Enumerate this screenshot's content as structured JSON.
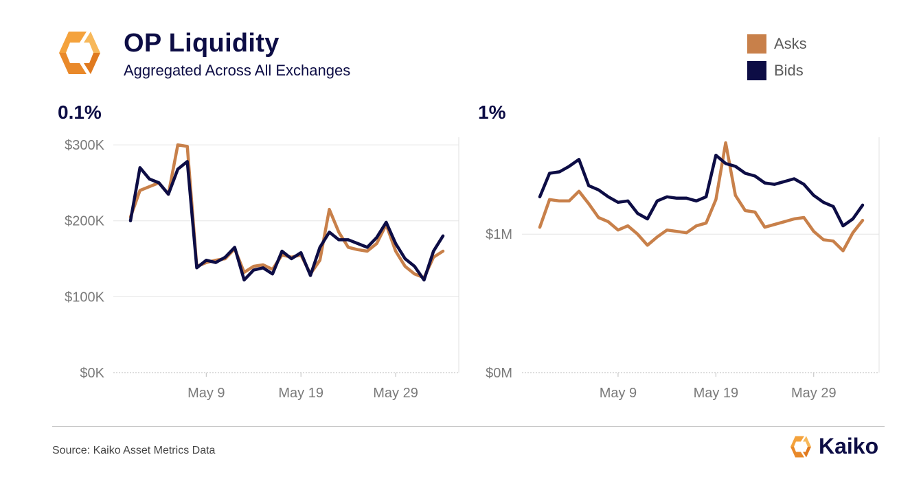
{
  "header": {
    "title": "OP Liquidity",
    "subtitle": "Aggregated Across All Exchanges"
  },
  "legend": [
    {
      "label": "Asks",
      "color": "#c8804a"
    },
    {
      "label": "Bids",
      "color": "#0d0d45"
    }
  ],
  "footer": {
    "source": "Source: Kaiko Asset Metrics Data",
    "brand": "Kaiko"
  },
  "chart_data": [
    {
      "type": "line",
      "title": "0.1%",
      "x_tick_labels": [
        "May 9",
        "May 19",
        "May 29"
      ],
      "y_tick_labels": [
        "$300K",
        "$200K",
        "$100K",
        "$0K"
      ],
      "x": [
        "May 1",
        "May 2",
        "May 3",
        "May 4",
        "May 5",
        "May 6",
        "May 7",
        "May 8",
        "May 9",
        "May 10",
        "May 11",
        "May 12",
        "May 13",
        "May 14",
        "May 15",
        "May 16",
        "May 17",
        "May 18",
        "May 19",
        "May 20",
        "May 21",
        "May 22",
        "May 23",
        "May 24",
        "May 25",
        "May 26",
        "May 27",
        "May 28",
        "May 29",
        "May 30",
        "May 31",
        "Jun 1",
        "Jun 2",
        "Jun 3"
      ],
      "ylim": [
        0,
        310000
      ],
      "grid": true,
      "series": [
        {
          "name": "Asks",
          "values": [
            205000,
            240000,
            245000,
            250000,
            235000,
            300000,
            298000,
            140000,
            145000,
            148000,
            150000,
            163000,
            132000,
            140000,
            142000,
            136000,
            155000,
            152000,
            155000,
            130000,
            148000,
            215000,
            185000,
            165000,
            162000,
            160000,
            170000,
            195000,
            160000,
            140000,
            130000,
            125000,
            152000,
            160000
          ]
        },
        {
          "name": "Bids",
          "values": [
            200000,
            270000,
            255000,
            250000,
            235000,
            268000,
            278000,
            138000,
            148000,
            145000,
            152000,
            165000,
            122000,
            135000,
            138000,
            130000,
            160000,
            150000,
            158000,
            128000,
            165000,
            185000,
            175000,
            175000,
            170000,
            165000,
            178000,
            198000,
            170000,
            150000,
            140000,
            122000,
            160000,
            180000
          ]
        }
      ]
    },
    {
      "type": "line",
      "title": "1%",
      "x_tick_labels": [
        "May 9",
        "May 19",
        "May 29"
      ],
      "y_tick_labels": [
        "$1M",
        "$0M"
      ],
      "x": [
        "May 1",
        "May 2",
        "May 3",
        "May 4",
        "May 5",
        "May 6",
        "May 7",
        "May 8",
        "May 9",
        "May 10",
        "May 11",
        "May 12",
        "May 13",
        "May 14",
        "May 15",
        "May 16",
        "May 17",
        "May 18",
        "May 19",
        "May 20",
        "May 21",
        "May 22",
        "May 23",
        "May 24",
        "May 25",
        "May 26",
        "May 27",
        "May 28",
        "May 29",
        "May 30",
        "May 31",
        "Jun 1",
        "Jun 2",
        "Jun 3"
      ],
      "ylim": [
        0,
        1700000
      ],
      "grid": true,
      "series": [
        {
          "name": "Asks",
          "values": [
            1050000,
            1250000,
            1240000,
            1240000,
            1310000,
            1220000,
            1120000,
            1090000,
            1030000,
            1060000,
            1000000,
            920000,
            980000,
            1030000,
            1020000,
            1010000,
            1060000,
            1080000,
            1250000,
            1660000,
            1280000,
            1170000,
            1160000,
            1050000,
            1070000,
            1090000,
            1110000,
            1120000,
            1020000,
            960000,
            950000,
            880000,
            1010000,
            1100000
          ]
        },
        {
          "name": "Bids",
          "values": [
            1270000,
            1440000,
            1450000,
            1490000,
            1540000,
            1350000,
            1320000,
            1270000,
            1230000,
            1240000,
            1150000,
            1110000,
            1240000,
            1270000,
            1260000,
            1260000,
            1240000,
            1270000,
            1570000,
            1510000,
            1490000,
            1440000,
            1420000,
            1370000,
            1360000,
            1380000,
            1400000,
            1360000,
            1280000,
            1230000,
            1200000,
            1060000,
            1110000,
            1210000
          ]
        }
      ]
    }
  ]
}
